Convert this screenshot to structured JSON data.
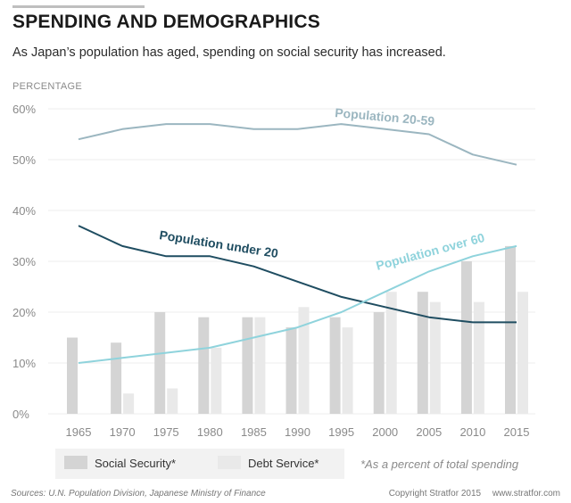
{
  "header": {
    "title": "SPENDING AND DEMOGRAPHICS",
    "subtitle": "As Japan’s population has aged, spending on social security has increased."
  },
  "footer": {
    "sources": "Sources:  U.N. Population Division,  Japanese Ministry of Finance",
    "copyright": "Copyright Stratfor 2015",
    "website": "www.stratfor.com"
  },
  "colors": {
    "social_security_bar": "#d4d4d4",
    "debt_service_bar": "#e9e9e9",
    "population_20_59": "#9bb6c0",
    "population_under_20": "#1f4d61",
    "population_over_60": "#8fd3dc",
    "grid": "#ececec",
    "legend_box": "#f2f2f2",
    "axis_text": "#8a8a8a"
  },
  "chart_data": {
    "type": "bar",
    "title": "SPENDING AND DEMOGRAPHICS",
    "subtitle": "As Japan’s population has aged, spending on social security has increased.",
    "ylabel": "PERCENTAGE",
    "ylim": [
      0,
      60
    ],
    "yticks": [
      "0%",
      "10%",
      "20%",
      "30%",
      "40%",
      "50%",
      "60%"
    ],
    "ytick_values": [
      0,
      10,
      20,
      30,
      40,
      50,
      60
    ],
    "grid": true,
    "categories": [
      "1965",
      "1970",
      "1975",
      "1980",
      "1985",
      "1990",
      "1995",
      "2000",
      "2005",
      "2010",
      "2015"
    ],
    "bar_series": [
      {
        "name": "Social Security*",
        "values": [
          15,
          14,
          20,
          19,
          19,
          17,
          19,
          20,
          24,
          30,
          33
        ]
      },
      {
        "name": "Debt Service*",
        "values": [
          null,
          4,
          5,
          13,
          19,
          21,
          17,
          24,
          22,
          22,
          24
        ]
      }
    ],
    "line_series": [
      {
        "name": "Population 20-59",
        "values": [
          54,
          56,
          57,
          57,
          56,
          56,
          57,
          56,
          55,
          51,
          49
        ]
      },
      {
        "name": "Population under 20",
        "values": [
          37,
          33,
          31,
          31,
          29,
          26,
          23,
          21,
          19,
          18,
          18
        ]
      },
      {
        "name": "Population over 60",
        "values": [
          10,
          11,
          12,
          13,
          15,
          17,
          20,
          24,
          28,
          31,
          33
        ]
      }
    ],
    "legend_position": "bottom",
    "legend_note": "*As a percent of total spending"
  }
}
